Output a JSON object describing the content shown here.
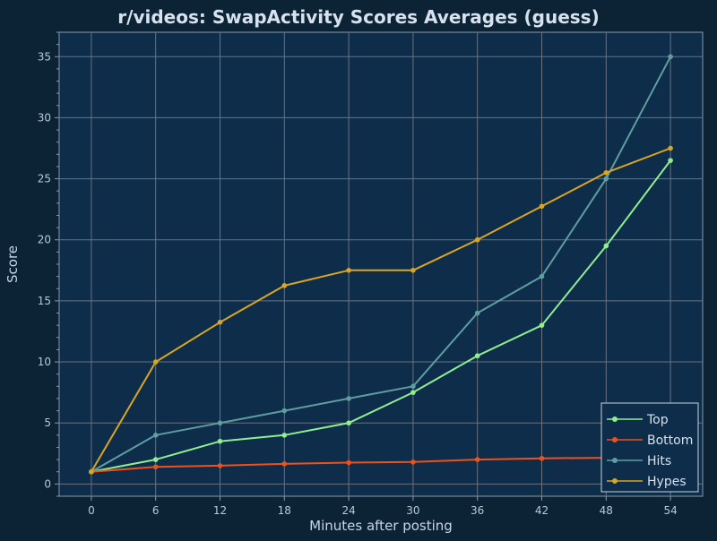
{
  "chart_data": {
    "type": "line",
    "title": "r/videos: SwapActivity Scores Averages (guess)",
    "xlabel": "Minutes after posting",
    "ylabel": "Score",
    "x": [
      0,
      6,
      12,
      18,
      24,
      30,
      36,
      42,
      48,
      54
    ],
    "xlim": [
      -3,
      57
    ],
    "ylim": [
      -1,
      37
    ],
    "xticks": [
      0,
      6,
      12,
      18,
      24,
      30,
      36,
      42,
      48,
      54
    ],
    "yticks": [
      0,
      5,
      10,
      15,
      20,
      25,
      30,
      35
    ],
    "grid": true,
    "legend_position": "bottom-right",
    "series": [
      {
        "name": "Top",
        "color": "#90ee90",
        "values": [
          1,
          2,
          3.5,
          4,
          5,
          7.5,
          10.5,
          13,
          19.5,
          26.5
        ]
      },
      {
        "name": "Bottom",
        "color": "#f0501a",
        "values": [
          1,
          1.4,
          1.5,
          1.65,
          1.75,
          1.8,
          2,
          2.1,
          2.15,
          null
        ]
      },
      {
        "name": "Hits",
        "color": "#5f9ea0",
        "values": [
          1,
          4,
          5,
          6,
          7,
          8,
          14,
          17,
          25,
          35
        ]
      },
      {
        "name": "Hypes",
        "color": "#daa520",
        "values": [
          1,
          10,
          13.25,
          16.25,
          17.5,
          17.5,
          20,
          22.75,
          25.5,
          27.5
        ]
      }
    ]
  },
  "colors": {
    "background": "#0c2336",
    "plot_background": "#0d2d4a",
    "grid": "#6a7380",
    "text": "#d7e2ee",
    "tick_text": "#b8c8d8"
  }
}
